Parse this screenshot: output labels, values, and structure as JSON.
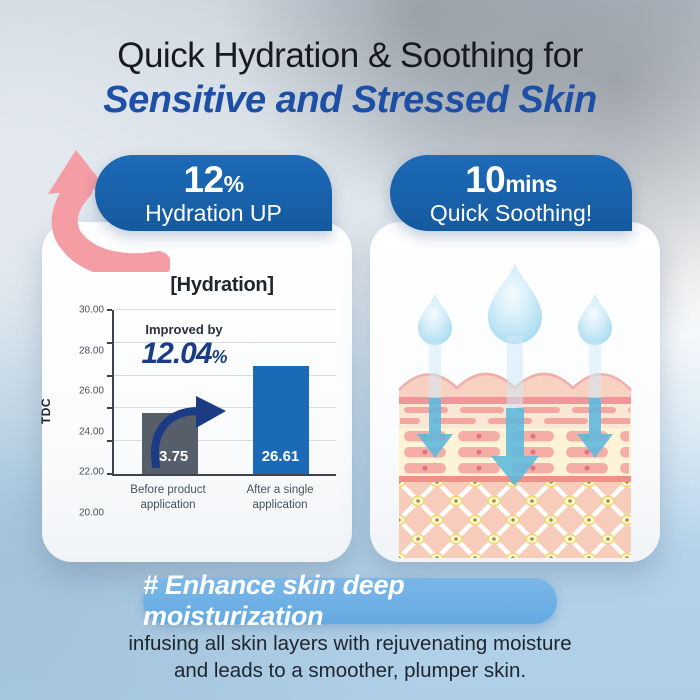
{
  "header": {
    "title_line1": "Quick Hydration & Soothing for",
    "title_line2": "Sensitive and Stressed Skin"
  },
  "left_card": {
    "badge": {
      "value": "12",
      "percent_sign": "%",
      "label": "Hydration UP"
    }
  },
  "right_card": {
    "badge": {
      "value": "10",
      "unit": "mins",
      "label": "Quick Soothing!"
    },
    "illustration_icons": [
      "water-drop-icon",
      "absorption-arrow-icon",
      "skin-cross-section-illustration"
    ]
  },
  "chart_data": {
    "type": "bar",
    "title": "[Hydration]",
    "ylabel": "TDC",
    "ylim": [
      20,
      30
    ],
    "yticks": [
      30,
      28,
      26,
      24,
      22,
      20
    ],
    "categories": [
      [
        "Before product",
        "application"
      ],
      [
        "After a single",
        "application"
      ]
    ],
    "values": [
      23.75,
      26.61
    ],
    "value_labels": [
      "23.75",
      "26.61"
    ],
    "bar_colors": [
      "#565e69",
      "#1b6ab8"
    ],
    "grid": true,
    "legend": null,
    "annotation": {
      "intro": "Improved by",
      "value": "12.04",
      "percent_sign": "%"
    }
  },
  "footer": {
    "hashtag_pill": "# Enhance skin deep moisturization",
    "caption_line1": "infusing all skin layers with rejuvenating moisture",
    "caption_line2": "and leads to a smoother, plumper skin."
  },
  "colors": {
    "badge_blue": "#1a63b0",
    "title_blue": "#1d4fa4",
    "annotation_navy": "#1b3c85",
    "bar_gray": "#565e69",
    "bar_blue": "#1b6ab8",
    "arrow_pink": "#f49da5",
    "pill_blue": "#72b1e5",
    "drop_blue": "#bfe3f4",
    "caption_dark": "#20262e"
  }
}
